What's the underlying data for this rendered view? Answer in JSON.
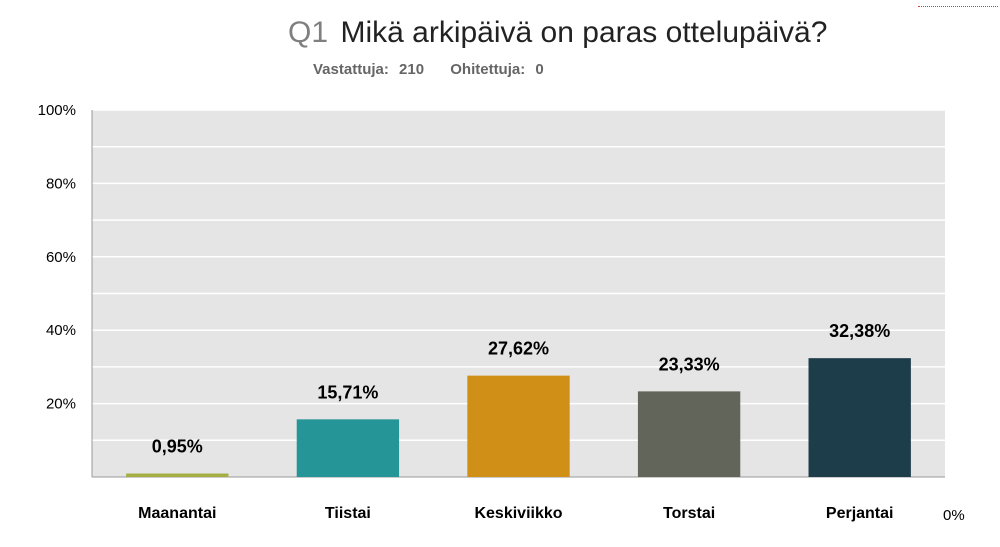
{
  "header": {
    "question_number": "Q1",
    "question_text": "Mikä arkipäivä on paras ottelupäivä?",
    "answered_label": "Vastattuja:",
    "answered_count": "210",
    "skipped_label": "Ohitettuja:",
    "skipped_count": "0"
  },
  "chart_data": {
    "type": "bar",
    "categories": [
      "Maanantai",
      "Tiistai",
      "Keskiviikko",
      "Torstai",
      "Perjantai"
    ],
    "values": [
      0.95,
      15.71,
      27.62,
      23.33,
      32.38
    ],
    "data_labels": [
      "0,95%",
      "15,71%",
      "27,62%",
      "23,33%",
      "32,38%"
    ],
    "colors": [
      "#a4ae43",
      "#259598",
      "#d08f17",
      "#62655a",
      "#1e3d4a"
    ],
    "yticks": [
      "20%",
      "40%",
      "60%",
      "80%",
      "100%"
    ],
    "ytick_values": [
      20,
      40,
      60,
      80,
      100
    ],
    "zero_label": "0%",
    "ylim": [
      0,
      100
    ],
    "grid": true,
    "plot_background": "#e5e5e5"
  }
}
